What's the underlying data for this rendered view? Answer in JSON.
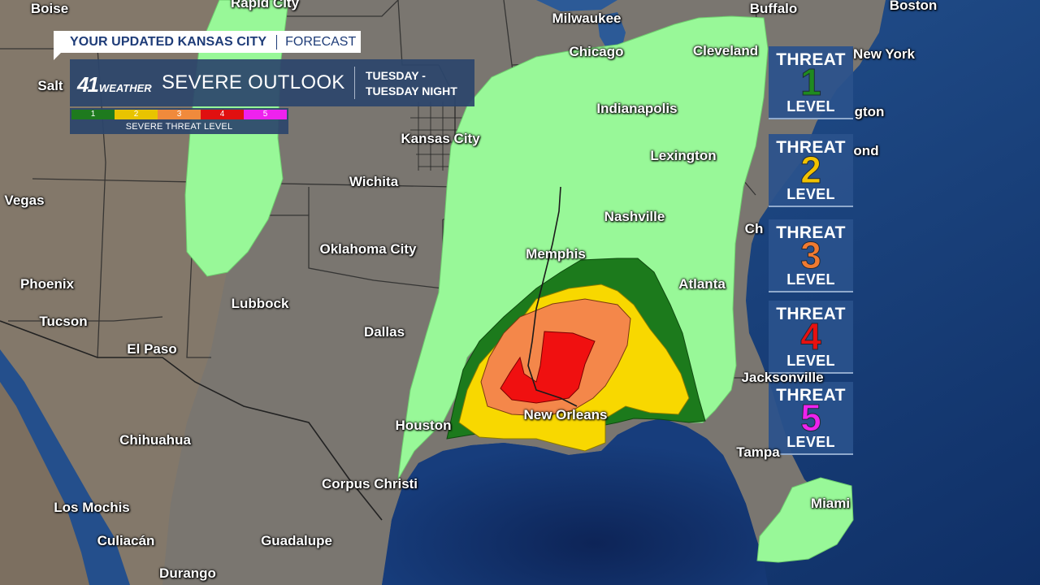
{
  "banner": {
    "station": "YOUR UPDATED KANSAS CITY",
    "section": "FORECAST"
  },
  "logo": {
    "num": "41",
    "brand": "WEATHER"
  },
  "title": "SEVERE OUTLOOK",
  "timeframe": {
    "line1": "TUESDAY -",
    "line2": "TUESDAY NIGHT"
  },
  "scale": {
    "caption": "SEVERE THREAT LEVEL",
    "levels": [
      {
        "label": "1",
        "color": "#1e7a1e"
      },
      {
        "label": "2",
        "color": "#e8c400"
      },
      {
        "label": "3",
        "color": "#f08a3c"
      },
      {
        "label": "4",
        "color": "#e01010"
      },
      {
        "label": "5",
        "color": "#ee22ee"
      }
    ]
  },
  "threat_panels": [
    {
      "threat": "THREAT",
      "number": "1",
      "level": "LEVEL",
      "color": "#1f8a1f"
    },
    {
      "threat": "THREAT",
      "number": "2",
      "level": "LEVEL",
      "color": "#f2c200"
    },
    {
      "threat": "THREAT",
      "number": "3",
      "level": "LEVEL",
      "color": "#f07a30"
    },
    {
      "threat": "THREAT",
      "number": "4",
      "level": "LEVEL",
      "color": "#e81010"
    },
    {
      "threat": "THREAT",
      "number": "5",
      "level": "LEVEL",
      "color": "#ee22ee"
    }
  ],
  "risk_colors": {
    "marginal": "#98f898",
    "slight": "#1c7a1c",
    "enhanced": "#f8d800",
    "moderate": "#f4874a",
    "high": "#f01010"
  },
  "cities": [
    "Boise",
    "Rapid City",
    "Milwaukee",
    "Buffalo",
    "Boston",
    "Salt",
    "Chicago",
    "Cleveland",
    "New York",
    "Indianapolis",
    "gton",
    "Kansas City",
    "Lexington",
    "ond",
    "Wichita",
    "Vegas",
    "Nashville",
    "Oklahoma City",
    "Memphis",
    "Ch",
    "Phoenix",
    "Atlanta",
    "Lubbock",
    "Tucson",
    "Dallas",
    "El Paso",
    "Jacksonville",
    "Houston",
    "New Orleans",
    "Chihuahua",
    "Tampa",
    "Corpus Christi",
    "Miami",
    "Los Mochis",
    "Culiacán",
    "Guadalupe",
    "Durango"
  ]
}
